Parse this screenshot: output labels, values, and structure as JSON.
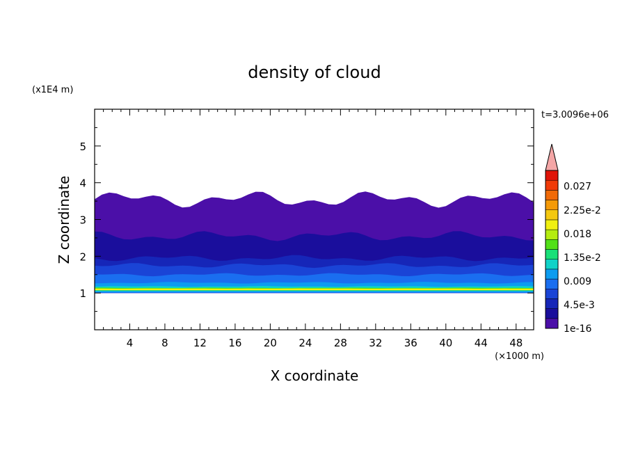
{
  "chart_data": {
    "type": "heatmap",
    "title": "density of cloud",
    "xlabel": "X coordinate",
    "ylabel": "Z coordinate",
    "x_unit": "(×1000 m)",
    "y_unit": "(x1E4 m)",
    "time_label": "t=3.0096e+06",
    "xlim": [
      0,
      50
    ],
    "ylim": [
      0,
      6
    ],
    "x_ticks": [
      4,
      8,
      12,
      16,
      20,
      24,
      28,
      32,
      36,
      40,
      44,
      48
    ],
    "y_ticks": [
      1,
      2,
      3,
      4,
      5
    ],
    "colorbar": {
      "min": 1e-16,
      "max": 0.03,
      "colors": [
        "#4b0fa8",
        "#1a0e9c",
        "#1626b8",
        "#1a44d6",
        "#1a6ef0",
        "#0c9cf0",
        "#10d2c8",
        "#18e078",
        "#52e018",
        "#b4ec10",
        "#f0f010",
        "#f4c810",
        "#f49a08",
        "#f06a08",
        "#f03a08",
        "#e01408"
      ],
      "over_color": "#f4a6a6",
      "labels": [
        {
          "value": 1e-16,
          "text": "1e-16"
        },
        {
          "value": 0.0045,
          "text": "4.5e-3"
        },
        {
          "value": 0.009,
          "text": "0.009"
        },
        {
          "value": 0.0135,
          "text": "1.35e-2"
        },
        {
          "value": 0.018,
          "text": "0.018"
        },
        {
          "value": 0.0225,
          "text": "2.25e-2"
        },
        {
          "value": 0.027,
          "text": "0.027"
        }
      ]
    },
    "cloud_layers": [
      {
        "z_bottom": 1.0,
        "z_top": 3.55,
        "color": "#4b0fa8"
      },
      {
        "z_bottom": 1.0,
        "z_top": 2.55,
        "color": "#1a0e9c"
      },
      {
        "z_bottom": 1.0,
        "z_top": 1.95,
        "color": "#1626b8"
      },
      {
        "z_bottom": 1.0,
        "z_top": 1.75,
        "color": "#1a44d6"
      },
      {
        "z_bottom": 1.0,
        "z_top": 1.5,
        "color": "#1a6ef0"
      },
      {
        "z_bottom": 1.02,
        "z_top": 1.28,
        "color": "#0c9cf0"
      },
      {
        "z_bottom": 1.05,
        "z_top": 1.18,
        "color": "#10d2c8"
      },
      {
        "z_bottom": 1.07,
        "z_top": 1.14,
        "color": "#52e018"
      },
      {
        "z_bottom": 1.08,
        "z_top": 1.12,
        "color": "#f0f010"
      }
    ]
  }
}
